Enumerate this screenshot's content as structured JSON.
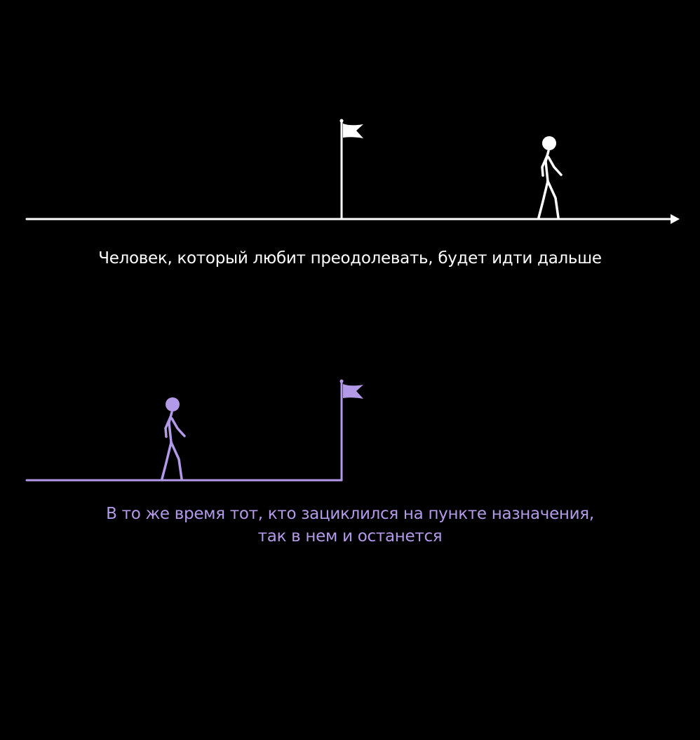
{
  "panels": {
    "top": {
      "caption": "Человек, который любит преодолевать, будет идти дальше",
      "color": "#ffffff"
    },
    "bottom": {
      "caption_line1": "В то же время тот, кто зациклился на пункте назначения,",
      "caption_line2": "так в нем и останется",
      "color": "#b39ae8"
    }
  },
  "icons": [
    "flag-icon",
    "stick-figure-icon",
    "arrow-icon"
  ]
}
